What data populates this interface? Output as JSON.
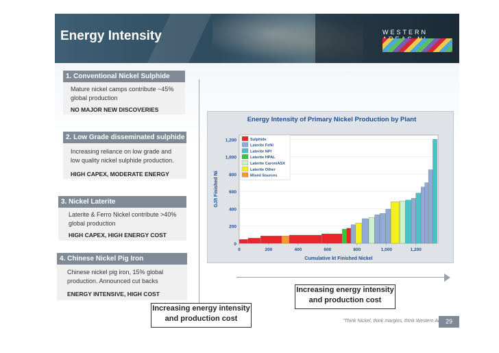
{
  "title": "Energy Intensity",
  "brand": "WESTERN AREAS NL",
  "sections": [
    {
      "header": "1. Conventional Nickel Sulphide",
      "body": [
        "Mature nickel camps contribute ~45%",
        "global production"
      ],
      "note": "NO MAJOR NEW DISCOVERIES"
    },
    {
      "header": "2. Low Grade disseminated sulphide",
      "body": [
        "Increasing reliance on low grade and",
        "low quality nickel sulphide production."
      ],
      "note": "HIGH CAPEX, MODERATE ENERGY"
    },
    {
      "header": "3. Nickel Laterite",
      "body": [
        "Laterite & Ferro Nickel contribute >40%",
        "global production"
      ],
      "note": "HIGH CAPEX, HIGH ENERGY COST"
    },
    {
      "header": "4. Chinese Nickel Pig Iron",
      "body": [
        "Chinese nickel pig iron, 15% global",
        "production.  Announced cut backs"
      ],
      "note": "ENERGY INTENSIVE, HIGH COST"
    }
  ],
  "callout_vertical": [
    "Increasing energy intensity",
    "and production cost"
  ],
  "callout_horizontal": [
    "Increasing energy intensity",
    "and production cost"
  ],
  "footer": "\"Think Nickel, think margins, think Western Areas\"",
  "page_number": "29",
  "chart_data": {
    "type": "bar",
    "title": "Energy Intensity of Primary Nickel Production by Plant",
    "xlabel": "Cumulative kt Finished Nickel",
    "ylabel": "GJ/t Finished Ni",
    "xlim": [
      0,
      1350
    ],
    "ylim": [
      0,
      1250
    ],
    "xticks": [
      "0",
      "200",
      "400",
      "600",
      "800",
      "1,000",
      "1,200"
    ],
    "xtick_values": [
      0,
      200,
      400,
      600,
      800,
      1000,
      1200
    ],
    "yticks": [
      "0",
      "200",
      "400",
      "600",
      "800",
      "1,000",
      "1,200"
    ],
    "ytick_values": [
      0,
      200,
      400,
      600,
      800,
      1000,
      1200
    ],
    "legend_position": "top-left",
    "legend": [
      {
        "name": "Sulphide",
        "color": "#e8262a"
      },
      {
        "name": "Laterite FeNi",
        "color": "#8faad6"
      },
      {
        "name": "Laterite NPI",
        "color": "#48c3c8"
      },
      {
        "name": "Laterite HPAL",
        "color": "#36c63a"
      },
      {
        "name": "Laterite Caron/ASX",
        "color": "#ccf2cc"
      },
      {
        "name": "Laterite Other",
        "color": "#f4f01e"
      },
      {
        "name": "Mixed Sources",
        "color": "#f29b2a"
      }
    ],
    "bars": [
      {
        "x0": 0,
        "x1": 60,
        "value": 45,
        "category": "Sulphide"
      },
      {
        "x0": 60,
        "x1": 145,
        "value": 60,
        "category": "Sulphide"
      },
      {
        "x0": 145,
        "x1": 290,
        "value": 85,
        "category": "Sulphide"
      },
      {
        "x0": 290,
        "x1": 340,
        "value": 85,
        "category": "Mixed Sources"
      },
      {
        "x0": 340,
        "x1": 560,
        "value": 95,
        "category": "Sulphide"
      },
      {
        "x0": 560,
        "x1": 700,
        "value": 110,
        "category": "Sulphide"
      },
      {
        "x0": 700,
        "x1": 730,
        "value": 165,
        "category": "Laterite HPAL"
      },
      {
        "x0": 730,
        "x1": 760,
        "value": 175,
        "category": "Sulphide"
      },
      {
        "x0": 760,
        "x1": 790,
        "value": 215,
        "category": "Laterite FeNi"
      },
      {
        "x0": 790,
        "x1": 835,
        "value": 235,
        "category": "Laterite Other"
      },
      {
        "x0": 835,
        "x1": 880,
        "value": 285,
        "category": "Laterite FeNi"
      },
      {
        "x0": 880,
        "x1": 920,
        "value": 300,
        "category": "Laterite Caron/ASX"
      },
      {
        "x0": 920,
        "x1": 955,
        "value": 330,
        "category": "Laterite FeNi"
      },
      {
        "x0": 955,
        "x1": 995,
        "value": 345,
        "category": "Laterite FeNi"
      },
      {
        "x0": 995,
        "x1": 1030,
        "value": 395,
        "category": "Laterite FeNi"
      },
      {
        "x0": 1030,
        "x1": 1090,
        "value": 480,
        "category": "Laterite Other"
      },
      {
        "x0": 1090,
        "x1": 1130,
        "value": 490,
        "category": "Laterite Caron/ASX"
      },
      {
        "x0": 1130,
        "x1": 1170,
        "value": 500,
        "category": "Laterite NPI"
      },
      {
        "x0": 1170,
        "x1": 1200,
        "value": 520,
        "category": "Laterite FeNi"
      },
      {
        "x0": 1200,
        "x1": 1235,
        "value": 580,
        "category": "Laterite NPI"
      },
      {
        "x0": 1235,
        "x1": 1260,
        "value": 650,
        "category": "Laterite FeNi"
      },
      {
        "x0": 1260,
        "x1": 1285,
        "value": 700,
        "category": "Laterite FeNi"
      },
      {
        "x0": 1285,
        "x1": 1315,
        "value": 850,
        "category": "Laterite FeNi"
      },
      {
        "x0": 1315,
        "x1": 1345,
        "value": 1200,
        "category": "Laterite NPI"
      }
    ]
  }
}
